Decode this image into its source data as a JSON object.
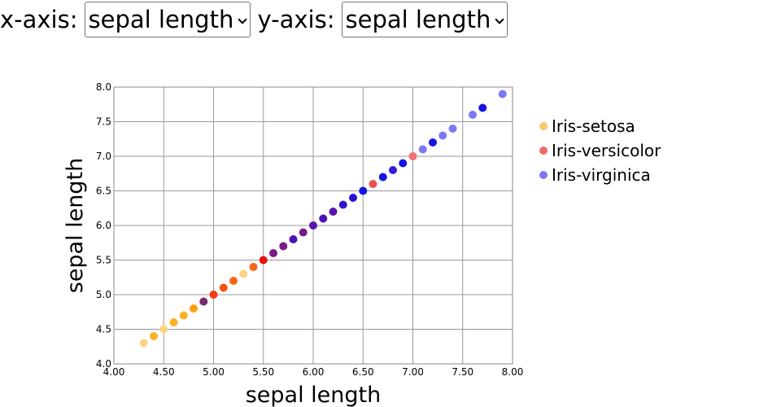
{
  "controls": {
    "x_label": "x-axis:",
    "x_value": "sepal length",
    "y_label": "y-axis:",
    "y_value": "sepal length"
  },
  "chart_data": {
    "type": "scatter",
    "xlabel": "sepal length",
    "ylabel": "sepal length",
    "xlim": [
      4.0,
      8.0
    ],
    "ylim": [
      4.0,
      8.0
    ],
    "x_ticks": [
      "4.00",
      "4.50",
      "5.00",
      "5.50",
      "6.00",
      "6.50",
      "7.00",
      "7.50",
      "8.00"
    ],
    "y_ticks": [
      "4.0",
      "4.5",
      "5.0",
      "5.5",
      "6.0",
      "6.5",
      "7.0",
      "7.5",
      "8.0"
    ],
    "grid": true,
    "legend_position": "right",
    "legend": [
      {
        "name": "Iris-setosa",
        "color": "#f8c96b"
      },
      {
        "name": "Iris-versicolor",
        "color": "#f26b6b"
      },
      {
        "name": "Iris-virginica",
        "color": "#7b78f5"
      }
    ],
    "points": [
      {
        "x": 4.3,
        "y": 4.3,
        "color": "#fcd382"
      },
      {
        "x": 4.4,
        "y": 4.4,
        "color": "#fbb125"
      },
      {
        "x": 4.5,
        "y": 4.5,
        "color": "#fcd382"
      },
      {
        "x": 4.6,
        "y": 4.6,
        "color": "#fbb125"
      },
      {
        "x": 4.7,
        "y": 4.7,
        "color": "#fbb125"
      },
      {
        "x": 4.8,
        "y": 4.8,
        "color": "#fb9e10"
      },
      {
        "x": 4.9,
        "y": 4.9,
        "color": "#7a2a6e"
      },
      {
        "x": 5.0,
        "y": 5.0,
        "color": "#f23c14"
      },
      {
        "x": 5.1,
        "y": 5.1,
        "color": "#f85314"
      },
      {
        "x": 5.2,
        "y": 5.2,
        "color": "#fa661a"
      },
      {
        "x": 5.3,
        "y": 5.3,
        "color": "#fcd382"
      },
      {
        "x": 5.4,
        "y": 5.4,
        "color": "#fa661a"
      },
      {
        "x": 5.5,
        "y": 5.5,
        "color": "#ea1010"
      },
      {
        "x": 5.6,
        "y": 5.6,
        "color": "#7a1a86"
      },
      {
        "x": 5.7,
        "y": 5.7,
        "color": "#7a1a86"
      },
      {
        "x": 5.8,
        "y": 5.8,
        "color": "#4a12b8"
      },
      {
        "x": 5.9,
        "y": 5.9,
        "color": "#7a1a86"
      },
      {
        "x": 6.0,
        "y": 6.0,
        "color": "#5a14b0"
      },
      {
        "x": 6.1,
        "y": 6.1,
        "color": "#4a12b8"
      },
      {
        "x": 6.2,
        "y": 6.2,
        "color": "#5a14b0"
      },
      {
        "x": 6.3,
        "y": 6.3,
        "color": "#3016d0"
      },
      {
        "x": 6.4,
        "y": 6.4,
        "color": "#2812d8"
      },
      {
        "x": 6.5,
        "y": 6.5,
        "color": "#1414e6"
      },
      {
        "x": 6.6,
        "y": 6.6,
        "color": "#ef5050"
      },
      {
        "x": 6.7,
        "y": 6.7,
        "color": "#1414e6"
      },
      {
        "x": 6.8,
        "y": 6.8,
        "color": "#3020d8"
      },
      {
        "x": 6.9,
        "y": 6.9,
        "color": "#1414e6"
      },
      {
        "x": 7.0,
        "y": 7.0,
        "color": "#f27272"
      },
      {
        "x": 7.1,
        "y": 7.1,
        "color": "#7b78f5"
      },
      {
        "x": 7.2,
        "y": 7.2,
        "color": "#1414e6"
      },
      {
        "x": 7.3,
        "y": 7.3,
        "color": "#7b78f5"
      },
      {
        "x": 7.4,
        "y": 7.4,
        "color": "#7b78f5"
      },
      {
        "x": 7.6,
        "y": 7.6,
        "color": "#7b78f5"
      },
      {
        "x": 7.7,
        "y": 7.7,
        "color": "#1414e6"
      },
      {
        "x": 7.9,
        "y": 7.9,
        "color": "#7b78f5"
      }
    ]
  }
}
